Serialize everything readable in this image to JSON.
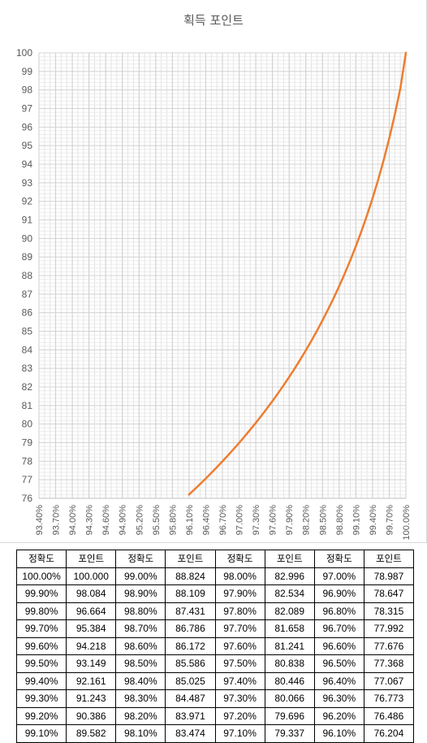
{
  "chart_data": {
    "type": "line",
    "title": "획득 포인트",
    "xlabel": "",
    "ylabel": "",
    "ylim": [
      76,
      100
    ],
    "xlim": [
      93.4,
      100.0
    ],
    "grid": true,
    "x_ticks": [
      "93.40%",
      "93.70%",
      "94.00%",
      "94.30%",
      "94.60%",
      "94.90%",
      "95.20%",
      "95.50%",
      "95.80%",
      "96.10%",
      "96.40%",
      "96.70%",
      "97.00%",
      "97.30%",
      "97.60%",
      "97.90%",
      "98.20%",
      "98.50%",
      "98.80%",
      "99.10%",
      "99.40%",
      "99.70%",
      "100.00%"
    ],
    "y_ticks": [
      76,
      77,
      78,
      79,
      80,
      81,
      82,
      83,
      84,
      85,
      86,
      87,
      88,
      89,
      90,
      91,
      92,
      93,
      94,
      95,
      96,
      97,
      98,
      99,
      100
    ],
    "series_color": "#ED7D31",
    "series": [
      {
        "x": [
          96.1,
          96.2,
          96.3,
          96.4,
          96.5,
          96.6,
          96.7,
          96.8,
          96.9,
          97.0,
          97.1,
          97.2,
          97.3,
          97.4,
          97.5,
          97.6,
          97.7,
          97.8,
          97.9,
          98.0,
          98.1,
          98.2,
          98.3,
          98.4,
          98.5,
          98.6,
          98.7,
          98.8,
          98.9,
          99.0,
          99.1,
          99.2,
          99.3,
          99.4,
          99.5,
          99.6,
          99.7,
          99.8,
          99.9,
          100.0
        ],
        "values": [
          76.204,
          76.486,
          76.773,
          77.067,
          77.368,
          77.676,
          77.992,
          78.315,
          78.647,
          78.987,
          79.337,
          79.696,
          80.066,
          80.446,
          80.838,
          81.241,
          81.658,
          82.089,
          82.534,
          82.996,
          83.474,
          83.971,
          84.487,
          85.025,
          85.586,
          86.172,
          86.786,
          87.431,
          88.109,
          88.824,
          89.582,
          90.386,
          91.243,
          92.161,
          93.149,
          94.218,
          95.384,
          96.664,
          98.084,
          100.0
        ]
      }
    ]
  },
  "table": {
    "headers": [
      "정확도",
      "포인트",
      "정확도",
      "포인트",
      "정확도",
      "포인트",
      "정확도",
      "포인트"
    ],
    "rows": [
      [
        "100.00%",
        "100.000",
        "99.00%",
        "88.824",
        "98.00%",
        "82.996",
        "97.00%",
        "78.987"
      ],
      [
        "99.90%",
        "98.084",
        "98.90%",
        "88.109",
        "97.90%",
        "82.534",
        "96.90%",
        "78.647"
      ],
      [
        "99.80%",
        "96.664",
        "98.80%",
        "87.431",
        "97.80%",
        "82.089",
        "96.80%",
        "78.315"
      ],
      [
        "99.70%",
        "95.384",
        "98.70%",
        "86.786",
        "97.70%",
        "81.658",
        "96.70%",
        "77.992"
      ],
      [
        "99.60%",
        "94.218",
        "98.60%",
        "86.172",
        "97.60%",
        "81.241",
        "96.60%",
        "77.676"
      ],
      [
        "99.50%",
        "93.149",
        "98.50%",
        "85.586",
        "97.50%",
        "80.838",
        "96.50%",
        "77.368"
      ],
      [
        "99.40%",
        "92.161",
        "98.40%",
        "85.025",
        "97.40%",
        "80.446",
        "96.40%",
        "77.067"
      ],
      [
        "99.30%",
        "91.243",
        "98.30%",
        "84.487",
        "97.30%",
        "80.066",
        "96.30%",
        "76.773"
      ],
      [
        "99.20%",
        "90.386",
        "98.20%",
        "83.971",
        "97.20%",
        "79.696",
        "96.20%",
        "76.486"
      ],
      [
        "99.10%",
        "89.582",
        "98.10%",
        "83.474",
        "97.10%",
        "79.337",
        "96.10%",
        "76.204"
      ]
    ]
  }
}
